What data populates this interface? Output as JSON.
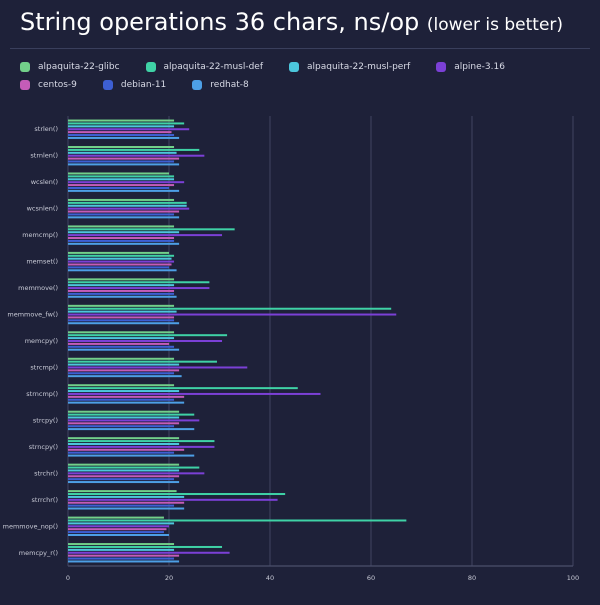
{
  "chart_data": {
    "type": "hbar",
    "title": "String operations 36 chars, ns/op",
    "subtitle": "(lower is better)",
    "categories": [
      "strlen()",
      "strnlen()",
      "wcslen()",
      "wcsnlen()",
      "memcmp()",
      "memset()",
      "memmove()",
      "memmove_fw()",
      "memcpy()",
      "strcmp()",
      "strncmp()",
      "strcpy()",
      "strncpy()",
      "strchr()",
      "strrchr()",
      "memmove_nop()",
      "memcpy_r()"
    ],
    "series": [
      {
        "name": "alpaquita-22-glibc",
        "color": "#72d08a",
        "values": [
          21,
          21,
          20,
          21,
          21,
          20,
          21,
          21,
          21,
          21,
          21,
          22,
          22,
          22,
          21.5,
          19,
          21
        ]
      },
      {
        "name": "alpaquita-22-musl-def",
        "color": "#3fd2a6",
        "values": [
          23,
          26,
          21,
          23.5,
          33,
          21,
          28,
          64,
          31.5,
          29.5,
          45.5,
          25,
          29,
          26,
          43,
          67,
          30.5
        ]
      },
      {
        "name": "alpaquita-22-musl-perf",
        "color": "#4cc6dc",
        "values": [
          21,
          21.5,
          21,
          23.5,
          22,
          20.5,
          21,
          21.5,
          21,
          22,
          22,
          22,
          22,
          22,
          23,
          21,
          21
        ]
      },
      {
        "name": "alpine-3.16",
        "color": "#7b40d6",
        "values": [
          24,
          27,
          23,
          24,
          30.5,
          21,
          28,
          65,
          30.5,
          35.5,
          50,
          26,
          29,
          27,
          41.5,
          20,
          32
        ]
      },
      {
        "name": "centos-9",
        "color": "#c45cb8",
        "values": [
          20.5,
          22,
          21,
          22,
          21,
          20.5,
          21,
          21,
          20,
          22,
          23,
          22,
          23,
          22,
          23,
          19.5,
          22
        ]
      },
      {
        "name": "debian-11",
        "color": "#3d5fd3",
        "values": [
          21,
          21,
          20,
          21,
          21,
          20,
          21,
          21,
          21,
          21,
          21,
          21,
          21,
          21,
          21,
          19,
          21
        ]
      },
      {
        "name": "redhat-8",
        "color": "#4d9fe6",
        "values": [
          22,
          22,
          22,
          22,
          22,
          21.5,
          21.5,
          22,
          22,
          22.5,
          23,
          25,
          25,
          22,
          23,
          20,
          22
        ]
      }
    ],
    "xlim": [
      0,
      100
    ],
    "xticks": [
      0,
      20,
      40,
      60,
      80,
      100
    ],
    "grid": true
  }
}
